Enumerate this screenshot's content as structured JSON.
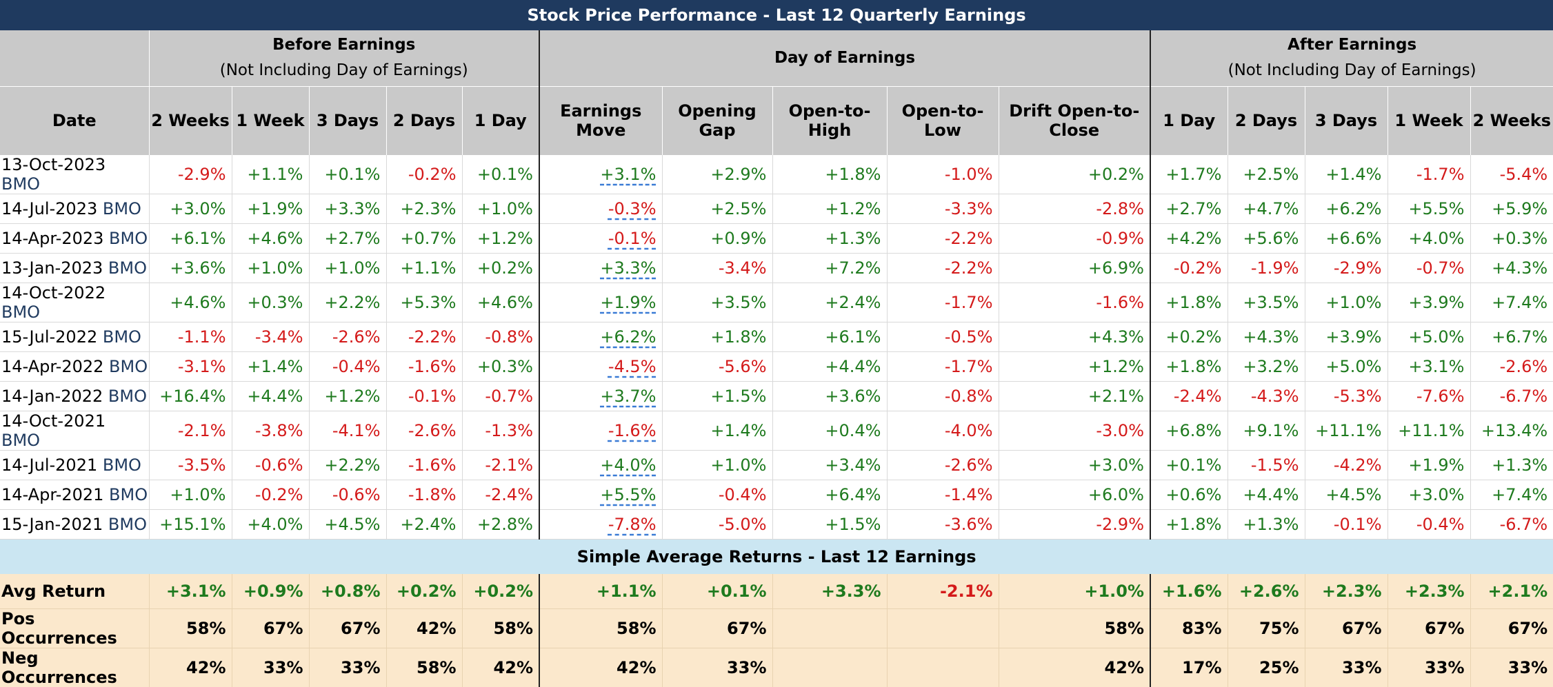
{
  "title": "Stock Price Performance - Last 12 Quarterly Earnings",
  "groups": {
    "before": {
      "title": "Before Earnings",
      "subtitle": "(Not Including Day of Earnings)"
    },
    "day": {
      "title": "Day of Earnings"
    },
    "after": {
      "title": "After Earnings",
      "subtitle": "(Not Including Day of Earnings)"
    }
  },
  "headers": {
    "date": "Date",
    "before": [
      "2 Weeks",
      "1 Week",
      "3 Days",
      "2 Days",
      "1 Day"
    ],
    "day": [
      "Earnings Move",
      "Opening Gap",
      "Open-to-High",
      "Open-to-Low",
      "Drift Open-to-Close"
    ],
    "after": [
      "1 Day",
      "2 Days",
      "3 Days",
      "1 Week",
      "2 Weeks"
    ]
  },
  "rows": [
    {
      "date": "13-Oct-2023",
      "timing": "BMO",
      "values": [
        "-2.9%",
        "+1.1%",
        "+0.1%",
        "-0.2%",
        "+0.1%",
        "+3.1%",
        "+2.9%",
        "+1.8%",
        "-1.0%",
        "+0.2%",
        "+1.7%",
        "+2.5%",
        "+1.4%",
        "-1.7%",
        "-5.4%"
      ]
    },
    {
      "date": "14-Jul-2023",
      "timing": "BMO",
      "values": [
        "+3.0%",
        "+1.9%",
        "+3.3%",
        "+2.3%",
        "+1.0%",
        "-0.3%",
        "+2.5%",
        "+1.2%",
        "-3.3%",
        "-2.8%",
        "+2.7%",
        "+4.7%",
        "+6.2%",
        "+5.5%",
        "+5.9%"
      ]
    },
    {
      "date": "14-Apr-2023",
      "timing": "BMO",
      "values": [
        "+6.1%",
        "+4.6%",
        "+2.7%",
        "+0.7%",
        "+1.2%",
        "-0.1%",
        "+0.9%",
        "+1.3%",
        "-2.2%",
        "-0.9%",
        "+4.2%",
        "+5.6%",
        "+6.6%",
        "+4.0%",
        "+0.3%"
      ]
    },
    {
      "date": "13-Jan-2023",
      "timing": "BMO",
      "values": [
        "+3.6%",
        "+1.0%",
        "+1.0%",
        "+1.1%",
        "+0.2%",
        "+3.3%",
        "-3.4%",
        "+7.2%",
        "-2.2%",
        "+6.9%",
        "-0.2%",
        "-1.9%",
        "-2.9%",
        "-0.7%",
        "+4.3%"
      ]
    },
    {
      "date": "14-Oct-2022",
      "timing": "BMO",
      "values": [
        "+4.6%",
        "+0.3%",
        "+2.2%",
        "+5.3%",
        "+4.6%",
        "+1.9%",
        "+3.5%",
        "+2.4%",
        "-1.7%",
        "-1.6%",
        "+1.8%",
        "+3.5%",
        "+1.0%",
        "+3.9%",
        "+7.4%"
      ]
    },
    {
      "date": "15-Jul-2022",
      "timing": "BMO",
      "values": [
        "-1.1%",
        "-3.4%",
        "-2.6%",
        "-2.2%",
        "-0.8%",
        "+6.2%",
        "+1.8%",
        "+6.1%",
        "-0.5%",
        "+4.3%",
        "+0.2%",
        "+4.3%",
        "+3.9%",
        "+5.0%",
        "+6.7%"
      ]
    },
    {
      "date": "14-Apr-2022",
      "timing": "BMO",
      "values": [
        "-3.1%",
        "+1.4%",
        "-0.4%",
        "-1.6%",
        "+0.3%",
        "-4.5%",
        "-5.6%",
        "+4.4%",
        "-1.7%",
        "+1.2%",
        "+1.8%",
        "+3.2%",
        "+5.0%",
        "+3.1%",
        "-2.6%"
      ]
    },
    {
      "date": "14-Jan-2022",
      "timing": "BMO",
      "values": [
        "+16.4%",
        "+4.4%",
        "+1.2%",
        "-0.1%",
        "-0.7%",
        "+3.7%",
        "+1.5%",
        "+3.6%",
        "-0.8%",
        "+2.1%",
        "-2.4%",
        "-4.3%",
        "-5.3%",
        "-7.6%",
        "-6.7%"
      ]
    },
    {
      "date": "14-Oct-2021",
      "timing": "BMO",
      "values": [
        "-2.1%",
        "-3.8%",
        "-4.1%",
        "-2.6%",
        "-1.3%",
        "-1.6%",
        "+1.4%",
        "+0.4%",
        "-4.0%",
        "-3.0%",
        "+6.8%",
        "+9.1%",
        "+11.1%",
        "+11.1%",
        "+13.4%"
      ]
    },
    {
      "date": "14-Jul-2021",
      "timing": "BMO",
      "values": [
        "-3.5%",
        "-0.6%",
        "+2.2%",
        "-1.6%",
        "-2.1%",
        "+4.0%",
        "+1.0%",
        "+3.4%",
        "-2.6%",
        "+3.0%",
        "+0.1%",
        "-1.5%",
        "-4.2%",
        "+1.9%",
        "+1.3%"
      ]
    },
    {
      "date": "14-Apr-2021",
      "timing": "BMO",
      "values": [
        "+1.0%",
        "-0.2%",
        "-0.6%",
        "-1.8%",
        "-2.4%",
        "+5.5%",
        "-0.4%",
        "+6.4%",
        "-1.4%",
        "+6.0%",
        "+0.6%",
        "+4.4%",
        "+4.5%",
        "+3.0%",
        "+7.4%"
      ]
    },
    {
      "date": "15-Jan-2021",
      "timing": "BMO",
      "values": [
        "+15.1%",
        "+4.0%",
        "+4.5%",
        "+2.4%",
        "+2.8%",
        "-7.8%",
        "-5.0%",
        "+1.5%",
        "-3.6%",
        "-2.9%",
        "+1.8%",
        "+1.3%",
        "-0.1%",
        "-0.4%",
        "-6.7%"
      ]
    }
  ],
  "summary_title": "Simple Average Returns - Last 12 Earnings",
  "summary": [
    {
      "label": "Avg Return",
      "colored": true,
      "values": [
        "+3.1%",
        "+0.9%",
        "+0.8%",
        "+0.2%",
        "+0.2%",
        "+1.1%",
        "+0.1%",
        "+3.3%",
        "-2.1%",
        "+1.0%",
        "+1.6%",
        "+2.6%",
        "+2.3%",
        "+2.3%",
        "+2.1%"
      ]
    },
    {
      "label": "Pos Occurrences",
      "colored": false,
      "values": [
        "58%",
        "67%",
        "67%",
        "42%",
        "58%",
        "58%",
        "67%",
        "",
        "",
        "58%",
        "83%",
        "75%",
        "67%",
        "67%",
        "67%"
      ]
    },
    {
      "label": "Neg Occurrences",
      "colored": false,
      "values": [
        "42%",
        "33%",
        "33%",
        "58%",
        "42%",
        "42%",
        "33%",
        "",
        "",
        "42%",
        "17%",
        "25%",
        "33%",
        "33%",
        "33%"
      ]
    }
  ],
  "colors": {
    "title_bg": "#1f3a5f",
    "header_bg": "#c9c9c9",
    "positive": "#1e7a1e",
    "negative": "#d41a1a",
    "summary_bg": "#cbe6f2",
    "avg_bg": "#fbe8cc"
  }
}
